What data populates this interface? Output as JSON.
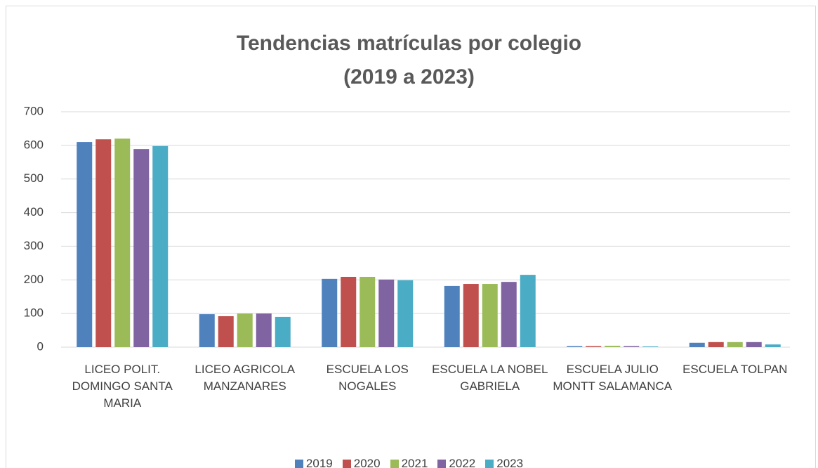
{
  "chart_data": {
    "type": "bar",
    "title": "Tendencias matrículas por colegio\n(2019 a  2023)",
    "categories": [
      "LICEO POLIT. DOMINGO SANTA MARIA",
      "LICEO AGRICOLA MANZANARES",
      "ESCUELA LOS NOGALES",
      "ESCUELA LA NOBEL GABRIELA",
      "ESCUELA JULIO MONTT SALAMANCA",
      "ESCUELA TOLPAN"
    ],
    "series": [
      {
        "name": "2019",
        "color": "#4f81bd",
        "values": [
          610,
          98,
          203,
          182,
          3,
          13
        ]
      },
      {
        "name": "2020",
        "color": "#c0504d",
        "values": [
          618,
          92,
          209,
          188,
          3,
          15
        ]
      },
      {
        "name": "2021",
        "color": "#9bbb59",
        "values": [
          620,
          100,
          209,
          188,
          4,
          15
        ]
      },
      {
        "name": "2022",
        "color": "#8064a2",
        "values": [
          589,
          100,
          201,
          194,
          3,
          15
        ]
      },
      {
        "name": "2023",
        "color": "#4bacc6",
        "values": [
          598,
          90,
          199,
          215,
          2,
          8
        ]
      }
    ],
    "ylim": [
      0,
      700
    ],
    "yticks": [
      0,
      100,
      200,
      300,
      400,
      500,
      600,
      700
    ],
    "grid": true,
    "legend": "bottom"
  }
}
